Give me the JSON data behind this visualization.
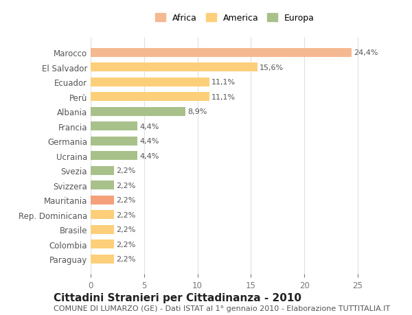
{
  "categories": [
    "Paraguay",
    "Colombia",
    "Brasile",
    "Rep. Dominicana",
    "Mauritania",
    "Svizzera",
    "Svezia",
    "Ucraina",
    "Germania",
    "Francia",
    "Albania",
    "Perù",
    "Ecuador",
    "El Salvador",
    "Marocco"
  ],
  "values": [
    2.2,
    2.2,
    2.2,
    2.2,
    2.2,
    2.2,
    2.2,
    4.4,
    4.4,
    4.4,
    8.9,
    11.1,
    11.1,
    15.6,
    24.4
  ],
  "labels": [
    "2,2%",
    "2,2%",
    "2,2%",
    "2,2%",
    "2,2%",
    "2,2%",
    "2,2%",
    "4,4%",
    "4,4%",
    "4,4%",
    "8,9%",
    "11,1%",
    "11,1%",
    "15,6%",
    "24,4%"
  ],
  "colors": [
    "#FDCF7A",
    "#FDCF7A",
    "#FDCF7A",
    "#FDCF7A",
    "#F4A07A",
    "#A8C08A",
    "#A8C08A",
    "#A8C08A",
    "#A8C08A",
    "#A8C08A",
    "#A8C08A",
    "#FDCF7A",
    "#FDCF7A",
    "#FDCF7A",
    "#F4B990"
  ],
  "continent": [
    "America",
    "America",
    "America",
    "America",
    "Africa",
    "Europa",
    "Europa",
    "Europa",
    "Europa",
    "Europa",
    "Europa",
    "America",
    "America",
    "America",
    "Africa"
  ],
  "legend_labels": [
    "Africa",
    "America",
    "Europa"
  ],
  "legend_colors": [
    "#F4B990",
    "#FDCF7A",
    "#A8C08A"
  ],
  "title": "Cittadini Stranieri per Cittadinanza - 2010",
  "subtitle": "COMUNE DI LUMARZO (GE) - Dati ISTAT al 1° gennaio 2010 - Elaborazione TUTTITALIA.IT",
  "xlim": [
    0,
    27
  ],
  "xticks": [
    0,
    5,
    10,
    15,
    20,
    25
  ],
  "bg_color": "#FFFFFF",
  "grid_color": "#E0E0E0",
  "title_fontsize": 11,
  "subtitle_fontsize": 8,
  "label_fontsize": 8,
  "tick_fontsize": 8.5
}
